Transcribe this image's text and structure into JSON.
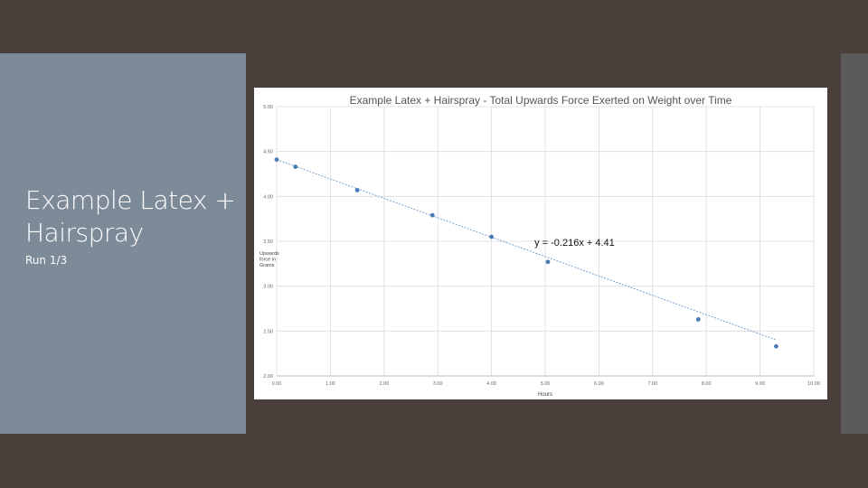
{
  "slide": {
    "title": "Example Latex + Hairspray",
    "subtitle": "Run 1/3"
  },
  "chart_data": {
    "type": "scatter",
    "title": "Example Latex + Hairspray - Total Upwards Force Exerted on Weight over Time",
    "xlabel": "Hours",
    "ylabel": "Upwards force in Grams",
    "xlim": [
      0,
      10
    ],
    "ylim": [
      2.0,
      5.0
    ],
    "x_ticks": [
      "0.00",
      "1.00",
      "2.00",
      "3.00",
      "4.00",
      "5.00",
      "6.00",
      "7.00",
      "8.00",
      "9.00",
      "10.00"
    ],
    "y_ticks": [
      "2.00",
      "2.50",
      "3.00",
      "3.50",
      "4.00",
      "4.50",
      "5.00"
    ],
    "grid": true,
    "series": [
      {
        "x": [
          0.0,
          0.35,
          1.5,
          2.9,
          4.0,
          5.05,
          7.85,
          9.3
        ],
        "y": [
          4.41,
          4.33,
          4.07,
          3.79,
          3.55,
          3.27,
          2.63,
          2.33
        ],
        "color": "#4a7ab5"
      }
    ],
    "trendline": {
      "slope": -0.216,
      "intercept": 4.41,
      "equation": "y = -0.216x + 4.41",
      "color": "#6a9bd1"
    }
  }
}
